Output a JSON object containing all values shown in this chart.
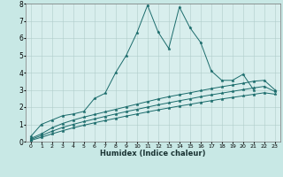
{
  "xlabel": "Humidex (Indice chaleur)",
  "xlim": [
    -0.5,
    23.5
  ],
  "ylim": [
    0,
    8
  ],
  "xticks": [
    0,
    1,
    2,
    3,
    4,
    5,
    6,
    7,
    8,
    9,
    10,
    11,
    12,
    13,
    14,
    15,
    16,
    17,
    18,
    19,
    20,
    21,
    22,
    23
  ],
  "yticks": [
    0,
    1,
    2,
    3,
    4,
    5,
    6,
    7,
    8
  ],
  "background_color": "#c8e8e5",
  "plot_bg_color": "#d8eeed",
  "grid_color": "#b0ccca",
  "line_color": "#1a6b6b",
  "series": [
    {
      "x": [
        0,
        1,
        2,
        3,
        4,
        5,
        6,
        7,
        8,
        9,
        10,
        11,
        12,
        13,
        14,
        15,
        16,
        17,
        18,
        19,
        20,
        21
      ],
      "y": [
        0.3,
        1.0,
        1.25,
        1.5,
        1.6,
        1.75,
        2.5,
        2.8,
        4.0,
        5.0,
        6.3,
        7.9,
        6.35,
        5.4,
        7.8,
        6.6,
        5.75,
        4.1,
        3.55,
        3.55,
        3.9,
        3.0
      ]
    },
    {
      "x": [
        0,
        1,
        2,
        3,
        4,
        5,
        6,
        7,
        8,
        9,
        10,
        11,
        12,
        13,
        14,
        15,
        16,
        17,
        18,
        19,
        20,
        21,
        22,
        23
      ],
      "y": [
        0.18,
        0.45,
        0.8,
        1.05,
        1.25,
        1.42,
        1.57,
        1.72,
        1.87,
        2.02,
        2.17,
        2.32,
        2.47,
        2.6,
        2.72,
        2.83,
        2.95,
        3.07,
        3.18,
        3.28,
        3.38,
        3.5,
        3.55,
        3.0
      ]
    },
    {
      "x": [
        0,
        1,
        2,
        3,
        4,
        5,
        6,
        7,
        8,
        9,
        10,
        11,
        12,
        13,
        14,
        15,
        16,
        17,
        18,
        19,
        20,
        21,
        22,
        23
      ],
      "y": [
        0.12,
        0.35,
        0.6,
        0.82,
        1.0,
        1.16,
        1.31,
        1.46,
        1.6,
        1.74,
        1.87,
        2.0,
        2.13,
        2.25,
        2.37,
        2.48,
        2.6,
        2.71,
        2.81,
        2.91,
        3.01,
        3.11,
        3.2,
        2.9
      ]
    },
    {
      "x": [
        0,
        1,
        2,
        3,
        4,
        5,
        6,
        7,
        8,
        9,
        10,
        11,
        12,
        13,
        14,
        15,
        16,
        17,
        18,
        19,
        20,
        21,
        22,
        23
      ],
      "y": [
        0.07,
        0.25,
        0.45,
        0.63,
        0.8,
        0.95,
        1.09,
        1.22,
        1.35,
        1.48,
        1.6,
        1.72,
        1.84,
        1.95,
        2.06,
        2.16,
        2.27,
        2.37,
        2.47,
        2.56,
        2.65,
        2.74,
        2.83,
        2.75
      ]
    }
  ]
}
